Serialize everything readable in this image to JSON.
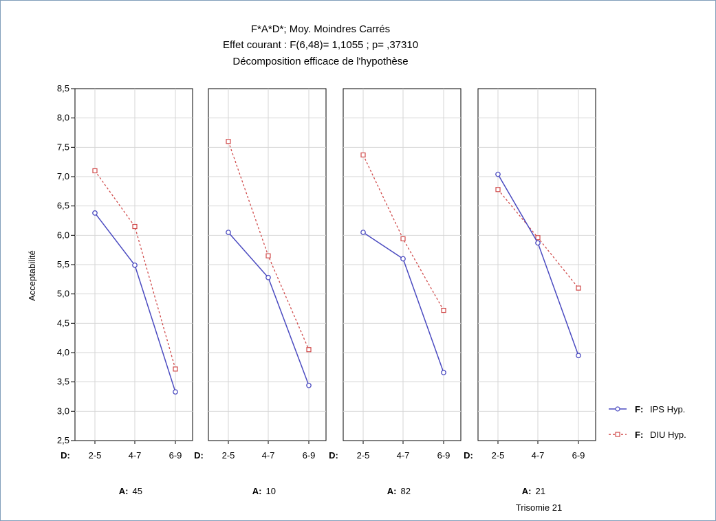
{
  "chart_data": {
    "type": "line",
    "title_lines": [
      "F*A*D*; Moy. Moindres Carrés",
      "Effet courant : F(6,48)= 1,1055 ; p= ,37310",
      "Décomposition efficace de l'hypothèse"
    ],
    "ylabel": "Acceptabilité",
    "ylim": [
      2.5,
      8.5
    ],
    "yticks": [
      "2,5",
      "3,0",
      "3,5",
      "4,0",
      "4,5",
      "5,0",
      "5,5",
      "6,0",
      "6,5",
      "7,0",
      "7,5",
      "8,0",
      "8,5"
    ],
    "grid": true,
    "x_factor_label": "D:",
    "categories": [
      "2-5",
      "4-7",
      "6-9"
    ],
    "panel_factor_label": "A:",
    "panels": [
      {
        "value": "45",
        "sublabel": "",
        "series": [
          {
            "values": [
              6.38,
              5.49,
              3.33
            ]
          },
          {
            "values": [
              7.1,
              6.15,
              3.72
            ]
          }
        ]
      },
      {
        "value": "10",
        "sublabel": "",
        "series": [
          {
            "values": [
              6.05,
              5.28,
              3.44
            ]
          },
          {
            "values": [
              7.6,
              5.65,
              4.05
            ]
          }
        ]
      },
      {
        "value": "82",
        "sublabel": "",
        "series": [
          {
            "values": [
              6.05,
              5.6,
              3.66
            ]
          },
          {
            "values": [
              7.37,
              5.94,
              4.72
            ]
          }
        ]
      },
      {
        "value": "21",
        "sublabel": "Trisomie 21",
        "series": [
          {
            "values": [
              7.04,
              5.87,
              3.95
            ]
          },
          {
            "values": [
              6.78,
              5.96,
              5.1
            ]
          }
        ]
      }
    ],
    "legend_position": "right",
    "legend": [
      {
        "factor": "F:",
        "name": "IPS Hyp.",
        "color": "#4a4ac0",
        "style": "solid",
        "marker": "circle"
      },
      {
        "factor": "F:",
        "name": "DIU Hyp.",
        "color": "#d04a4a",
        "style": "dashed",
        "marker": "square"
      }
    ]
  }
}
